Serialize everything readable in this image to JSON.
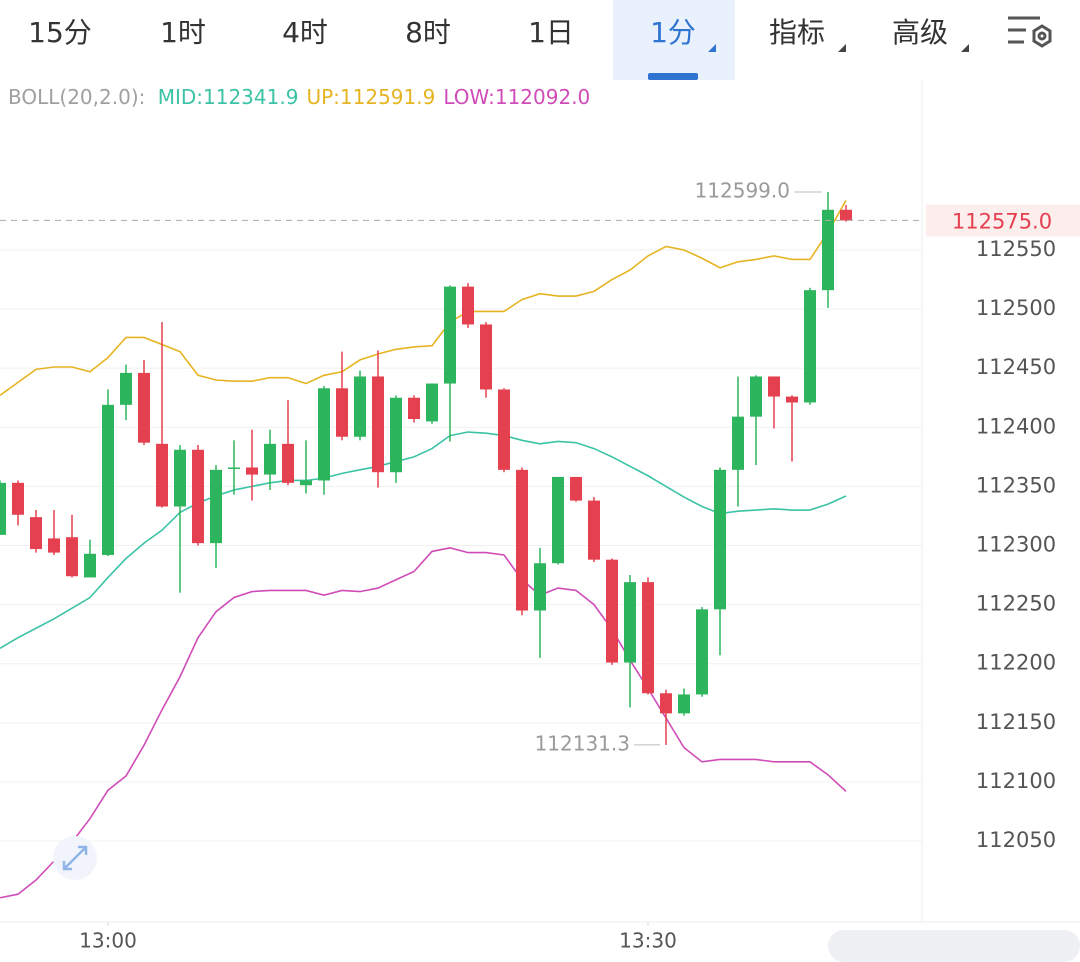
{
  "tabs": [
    "15分",
    "1时",
    "4时",
    "8时",
    "1日",
    "1分",
    "指标",
    "高级"
  ],
  "active_tab": 5,
  "chart_data": {
    "type": "candlestick",
    "indicator": "BOLL(20,2.0):",
    "categories": [
      null,
      null,
      null,
      null,
      null,
      null,
      "13:00",
      null,
      null,
      null,
      null,
      null,
      null,
      null,
      null,
      null,
      null,
      null,
      null,
      null,
      null,
      null,
      null,
      null,
      null,
      null,
      null,
      null,
      null,
      null,
      null,
      null,
      null,
      null,
      null,
      null,
      "13:30",
      null,
      null,
      null,
      null,
      null,
      null,
      null,
      null,
      null,
      null,
      null
    ],
    "open": [
      112309,
      112353,
      112324,
      112306,
      112307,
      112273,
      112292,
      112419,
      112446,
      112386,
      112333,
      112381,
      112302,
      112366,
      112366,
      112360,
      112386,
      112351,
      112355,
      112433,
      112392,
      112443,
      112362,
      112425,
      112405,
      112437,
      112519,
      112487,
      112432,
      112364,
      112245,
      112285,
      112358,
      112338,
      112288,
      112201,
      112269,
      112175,
      112158,
      112174,
      112246,
      112364,
      112409,
      112443,
      112426,
      112421,
      112516,
      112584
    ],
    "high": [
      112355,
      112355,
      112330,
      112330,
      112326,
      112305,
      112432,
      112453,
      112457,
      112489,
      112385,
      112385,
      112368,
      112389,
      112398,
      112398,
      112423,
      112389,
      112435,
      112464,
      112448,
      112465,
      112427,
      112427,
      112437,
      112520,
      112522,
      112489,
      112433,
      112366,
      112298,
      112358,
      112358,
      112341,
      112289,
      112275,
      112273,
      112178,
      112179,
      112248,
      112366,
      112443,
      112444,
      112443,
      112427,
      112518,
      112599,
      112588
    ],
    "low": [
      112309,
      112317,
      112294,
      112292,
      112273,
      112273,
      112291,
      112406,
      112385,
      112332,
      112260,
      112300,
      112281,
      112343,
      112338,
      112347,
      112351,
      112344,
      112343,
      112389,
      112389,
      112349,
      112353,
      112404,
      112403,
      112388,
      112484,
      112425,
      112362,
      112241,
      112205,
      112284,
      112337,
      112286,
      112199,
      112163,
      112174,
      112131.3,
      112156,
      112172,
      112207,
      112333,
      112368,
      112399,
      112371,
      112419,
      112501,
      112574
    ],
    "close": [
      112353,
      112326,
      112297,
      112294,
      112274,
      112293,
      112419,
      112446,
      112387,
      112333,
      112381,
      112302,
      112364,
      112366,
      112360,
      112386,
      112353,
      112355,
      112433,
      112392,
      112443,
      112362,
      112425,
      112407,
      112437,
      112519,
      112487,
      112432,
      112364,
      112245,
      112285,
      112358,
      112338,
      112288,
      112201,
      112269,
      112175,
      112158,
      112174,
      112246,
      112364,
      112409,
      112443,
      112426,
      112421,
      112516,
      112584,
      112575
    ],
    "up_color": "#2db55d",
    "down_color": "#e5404f",
    "boll": [
      {
        "label": "MID:112341.9",
        "color": "#3cc3a6",
        "values": [
          112213,
          112222,
          112230,
          112238,
          112247,
          112256,
          112273,
          112289,
          112302,
          112313,
          112328,
          112336,
          112342,
          112347,
          112350,
          112353,
          112355,
          112355,
          112357,
          112361,
          112364,
          112367,
          112371,
          112375,
          112382,
          112393,
          112396,
          112395,
          112393,
          112389,
          112386,
          112388,
          112387,
          112382,
          112375,
          112367,
          112359,
          112350,
          112341,
          112333,
          112327,
          112329,
          112330,
          112331,
          112330,
          112330,
          112335,
          112341.9
        ]
      },
      {
        "label": "UP:112591.9",
        "color": "#e6b422",
        "values": [
          112427,
          112438,
          112449,
          112451,
          112451,
          112447,
          112459,
          112476,
          112476,
          112470,
          112464,
          112444,
          112440,
          112439,
          112439,
          112442,
          112442,
          112437,
          112444,
          112447,
          112457,
          112462,
          112466,
          112468,
          112469,
          112489,
          112498,
          112498,
          112498,
          112508,
          112513,
          112511,
          112511,
          112515,
          112525,
          112533,
          112545,
          112553,
          112550,
          112543,
          112535,
          112540,
          112542,
          112545,
          112542,
          112542,
          112565,
          112591.9
        ]
      },
      {
        "label": "LOW:112092.0",
        "color": "#d04cb8",
        "values": [
          112002,
          112005,
          112017,
          112033,
          112049,
          112069,
          112093,
          112105,
          112131,
          112161,
          112189,
          112222,
          112244,
          112256,
          112261,
          112262,
          112262,
          112262,
          112258,
          112262,
          112261,
          112264,
          112271,
          112278,
          112295,
          112298,
          112294,
          112294,
          112292,
          112271,
          112258,
          112264,
          112262,
          112250,
          112229,
          112203,
          112179,
          112154,
          112129,
          112117,
          112119,
          112119,
          112119,
          112117,
          112117,
          112117,
          112106,
          112092
        ]
      }
    ],
    "max_label": {
      "value": 112599,
      "label": "112599.0"
    },
    "min_label": {
      "value": 112131.3,
      "label": "112131.3"
    },
    "last_price": {
      "value": 112575,
      "label": "112575.0"
    },
    "ylim": [
      111981.5,
      112692.1
    ],
    "yticks": [
      112050,
      112100,
      112150,
      112200,
      112250,
      112300,
      112350,
      112400,
      112450,
      112500,
      112550
    ],
    "grid": true
  }
}
